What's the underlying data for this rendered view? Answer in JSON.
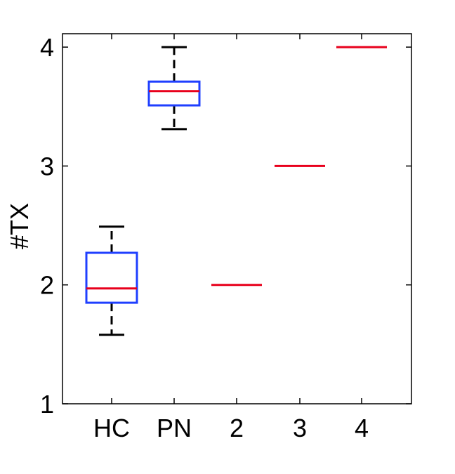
{
  "chart_data": {
    "type": "box",
    "ylabel": "#TX",
    "xlabel": "",
    "title": "",
    "categories": [
      "HC",
      "PN",
      "2",
      "3",
      "4"
    ],
    "ylim": [
      1,
      4.1
    ],
    "yticks": [
      1,
      2,
      3,
      4
    ],
    "grid": false,
    "boxes": [
      {
        "category": "HC",
        "whisker_low": 1.58,
        "q1": 1.85,
        "median": 1.97,
        "q3": 2.27,
        "whisker_high": 2.49
      },
      {
        "category": "PN",
        "whisker_low": 3.31,
        "q1": 3.51,
        "median": 3.63,
        "q3": 3.71,
        "whisker_high": 4.0
      },
      {
        "category": "2",
        "whisker_low": 2.0,
        "q1": 2.0,
        "median": 2.0,
        "q3": 2.0,
        "whisker_high": 2.0
      },
      {
        "category": "3",
        "whisker_low": 3.0,
        "q1": 3.0,
        "median": 3.0,
        "q3": 3.0,
        "whisker_high": 3.0
      },
      {
        "category": "4",
        "whisker_low": 4.0,
        "q1": 4.0,
        "median": 4.0,
        "q3": 4.0,
        "whisker_high": 4.0
      }
    ],
    "colors": {
      "box": "#1f3fff",
      "median": "#e8001c",
      "whisker": "#000000",
      "axis": "#000000"
    }
  }
}
